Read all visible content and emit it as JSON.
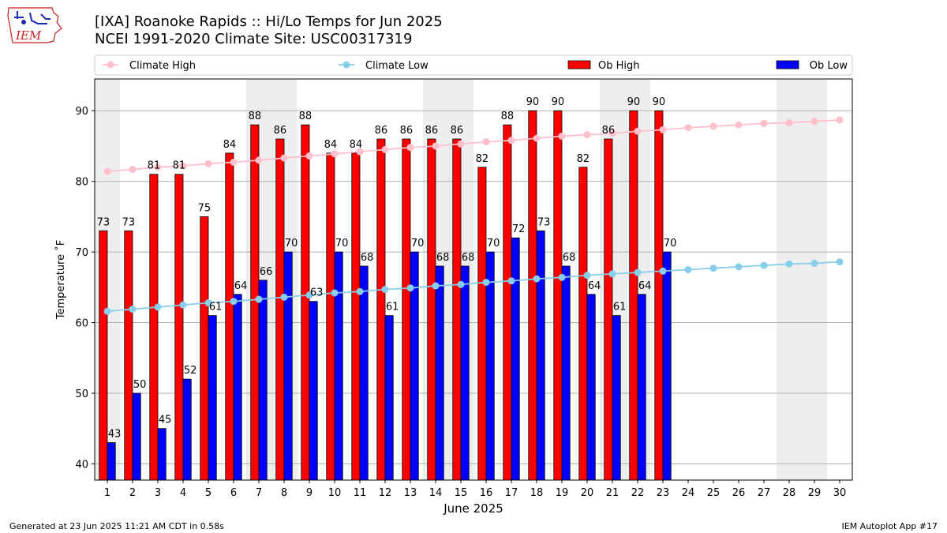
{
  "header": {
    "title_line1": "[IXA] Roanoke Rapids :: Hi/Lo Temps for Jun 2025",
    "title_line2": "NCEI 1991-2020 Climate Site: USC00317319",
    "logo_text": "IEM"
  },
  "footer": {
    "generated": "Generated at 23 Jun 2025 11:21 AM CDT in 0.58s",
    "app": "IEM Autoplot App #17"
  },
  "chart_data": {
    "type": "bar",
    "xlabel": "June 2025",
    "ylabel": "Temperature ˚F",
    "ylim": [
      37.7,
      94.5
    ],
    "yticks": [
      40,
      50,
      60,
      70,
      80,
      90
    ],
    "grid": "horizontal",
    "legend_position": "top",
    "days": [
      1,
      2,
      3,
      4,
      5,
      6,
      7,
      8,
      9,
      10,
      11,
      12,
      13,
      14,
      15,
      16,
      17,
      18,
      19,
      20,
      21,
      22,
      23,
      24,
      25,
      26,
      27,
      28,
      29,
      30
    ],
    "weekend_days": [
      1,
      7,
      8,
      14,
      15,
      21,
      22,
      28,
      29
    ],
    "series": [
      {
        "name": "Climate High",
        "kind": "line",
        "color": "#ffc0cb",
        "values": [
          81.4,
          81.7,
          82.0,
          82.2,
          82.5,
          82.7,
          83.0,
          83.3,
          83.6,
          83.9,
          84.2,
          84.5,
          84.8,
          85.0,
          85.3,
          85.6,
          85.8,
          86.1,
          86.4,
          86.6,
          86.8,
          87.1,
          87.3,
          87.6,
          87.8,
          88.0,
          88.2,
          88.3,
          88.5,
          88.7
        ]
      },
      {
        "name": "Climate Low",
        "kind": "line",
        "color": "#87ceeb",
        "values": [
          61.6,
          61.9,
          62.2,
          62.5,
          62.8,
          63.0,
          63.3,
          63.6,
          63.9,
          64.2,
          64.4,
          64.7,
          64.9,
          65.2,
          65.4,
          65.7,
          65.9,
          66.2,
          66.4,
          66.7,
          66.9,
          67.1,
          67.3,
          67.5,
          67.7,
          67.9,
          68.1,
          68.3,
          68.4,
          68.6
        ]
      },
      {
        "name": "Ob High",
        "kind": "bar",
        "color": "#ff0000",
        "values": [
          73,
          73,
          81,
          81,
          75,
          84,
          88,
          86,
          88,
          84,
          84,
          86,
          86,
          86,
          86,
          82,
          88,
          90,
          90,
          82,
          86,
          90,
          90
        ]
      },
      {
        "name": "Ob Low",
        "kind": "bar",
        "color": "#0000ff",
        "values": [
          43,
          50,
          45,
          52,
          61,
          64,
          66,
          70,
          63,
          70,
          68,
          61,
          70,
          68,
          68,
          70,
          72,
          73,
          68,
          64,
          61,
          64,
          70
        ]
      }
    ]
  }
}
